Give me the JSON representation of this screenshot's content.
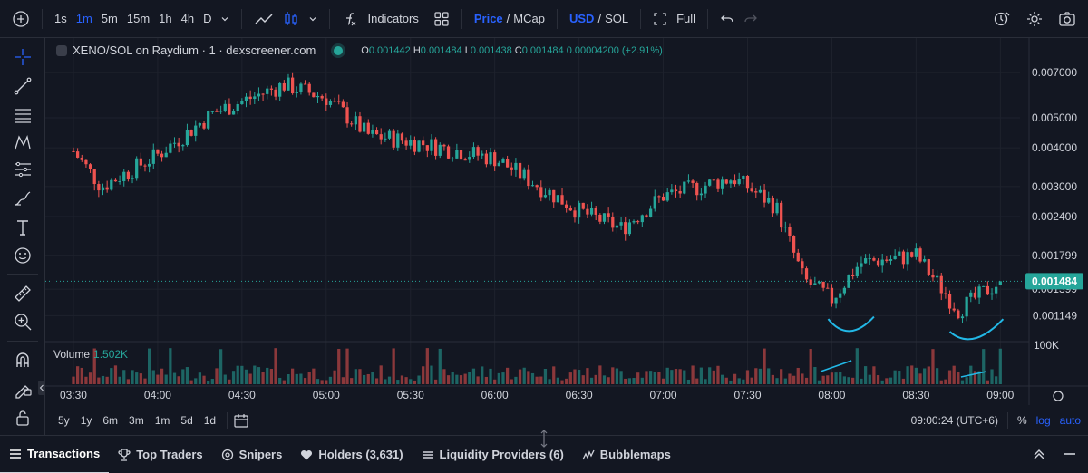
{
  "toolbar": {
    "timeframes": [
      "1s",
      "1m",
      "5m",
      "15m",
      "1h",
      "4h",
      "D"
    ],
    "active_timeframe": "1m",
    "indicators_label": "Indicators",
    "price_label": "Price",
    "mcap_label": "MCap",
    "usd_label": "USD",
    "sol_label": "SOL",
    "slash": "/",
    "full_label": "Full"
  },
  "legend": {
    "symbol": "XENO/SOL on Raydium · 1 · dexscreener.com",
    "o_key": "O",
    "o_val": "0.001442",
    "h_key": "H",
    "h_val": "0.001484",
    "l_key": "L",
    "l_val": "0.001438",
    "c_key": "C",
    "c_val": "0.001484",
    "change": "0.00004200 (+2.91%)"
  },
  "volume": {
    "label": "Volume",
    "value": "1.502K",
    "axis_label": "100K"
  },
  "price_axis": {
    "ticks": [
      "0.007000",
      "0.005000",
      "0.004000",
      "0.003000",
      "0.002400",
      "0.001799",
      "0.001399",
      "0.001149"
    ],
    "current": "0.001484"
  },
  "time_axis": {
    "ticks": [
      "03:30",
      "04:00",
      "04:30",
      "05:00",
      "05:30",
      "06:00",
      "06:30",
      "07:00",
      "07:30",
      "08:00",
      "08:30",
      "09:00"
    ]
  },
  "range_buttons": [
    "5y",
    "1y",
    "6m",
    "3m",
    "1m",
    "5d",
    "1d"
  ],
  "clock": "09:00:24 (UTC+6)",
  "scale": {
    "percent": "%",
    "log": "log",
    "auto": "auto"
  },
  "bottom_tabs": [
    {
      "label": "Transactions",
      "icon": "list-icon"
    },
    {
      "label": "Top Traders",
      "icon": "trophy-icon"
    },
    {
      "label": "Snipers",
      "icon": "crosshair-icon"
    },
    {
      "label": "Holders (3,631)",
      "icon": "heart-icon"
    },
    {
      "label": "Liquidity Providers (6)",
      "icon": "layers-icon"
    },
    {
      "label": "Bubblemaps",
      "icon": "bubblemaps-icon"
    }
  ],
  "colors": {
    "up": "#26a69a",
    "down": "#ef5350",
    "accent": "#2962ff",
    "annotation": "#22b8e6"
  },
  "chart_data": {
    "type": "candlestick",
    "symbol": "XENO/SOL",
    "interval": "1m",
    "price_anchors": [
      {
        "time": "03:30",
        "price": 0.0039
      },
      {
        "time": "03:40",
        "price": 0.003
      },
      {
        "time": "04:00",
        "price": 0.0038
      },
      {
        "time": "04:20",
        "price": 0.0052
      },
      {
        "time": "04:45",
        "price": 0.0064
      },
      {
        "time": "05:00",
        "price": 0.0058
      },
      {
        "time": "05:15",
        "price": 0.0044
      },
      {
        "time": "05:30",
        "price": 0.0042
      },
      {
        "time": "06:00",
        "price": 0.0037
      },
      {
        "time": "06:30",
        "price": 0.0025
      },
      {
        "time": "06:45",
        "price": 0.0022
      },
      {
        "time": "07:00",
        "price": 0.0028
      },
      {
        "time": "07:25",
        "price": 0.0032
      },
      {
        "time": "07:40",
        "price": 0.0026
      },
      {
        "time": "07:50",
        "price": 0.0015
      },
      {
        "time": "08:00",
        "price": 0.0013
      },
      {
        "time": "08:10",
        "price": 0.0017
      },
      {
        "time": "08:30",
        "price": 0.0018
      },
      {
        "time": "08:45",
        "price": 0.0012
      },
      {
        "time": "09:00",
        "price": 0.001484
      }
    ],
    "last_price": 0.001484,
    "volume_last": "1.502K"
  }
}
